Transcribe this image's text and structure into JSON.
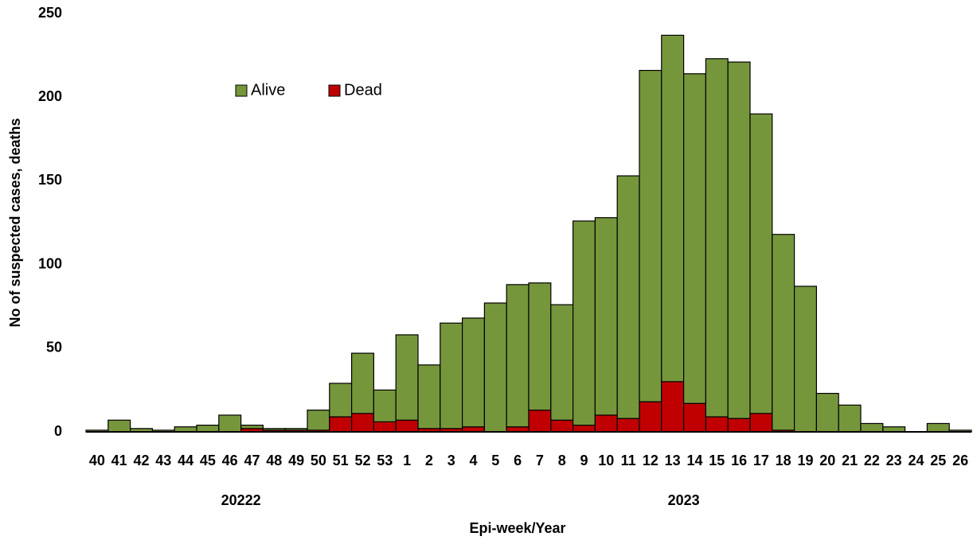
{
  "chart_data": {
    "type": "stacked-bar",
    "y_label": "No of suspected cases, deaths",
    "x_label": "Epi-week/Year",
    "group_labels": [
      "20222",
      "2023"
    ],
    "categories": [
      "40",
      "41",
      "42",
      "43",
      "44",
      "45",
      "46",
      "47",
      "48",
      "49",
      "50",
      "51",
      "52",
      "53",
      "1",
      "2",
      "3",
      "4",
      "5",
      "6",
      "7",
      "8",
      "9",
      "10",
      "11",
      "12",
      "13",
      "14",
      "15",
      "16",
      "17",
      "18",
      "19",
      "20",
      "21",
      "22",
      "23",
      "24",
      "25",
      "26"
    ],
    "series": [
      {
        "name": "Alive",
        "color": "#76963c",
        "values": [
          1,
          7,
          2,
          1,
          3,
          4,
          10,
          2,
          1,
          1,
          12,
          20,
          36,
          19,
          51,
          38,
          63,
          65,
          77,
          85,
          76,
          69,
          122,
          118,
          145,
          198,
          207,
          197,
          214,
          213,
          179,
          117,
          87,
          23,
          16,
          5,
          3,
          0,
          5,
          1
        ]
      },
      {
        "name": "Dead",
        "color": "#c00000",
        "values": [
          0,
          0,
          0,
          0,
          0,
          0,
          0,
          2,
          1,
          1,
          1,
          9,
          11,
          6,
          7,
          2,
          2,
          3,
          0,
          3,
          13,
          7,
          4,
          10,
          8,
          18,
          30,
          17,
          9,
          8,
          11,
          1,
          0,
          0,
          0,
          0,
          0,
          0,
          0,
          0
        ]
      }
    ],
    "ylim": [
      0,
      250
    ],
    "yticks": [
      0,
      50,
      100,
      150,
      200,
      250
    ]
  }
}
